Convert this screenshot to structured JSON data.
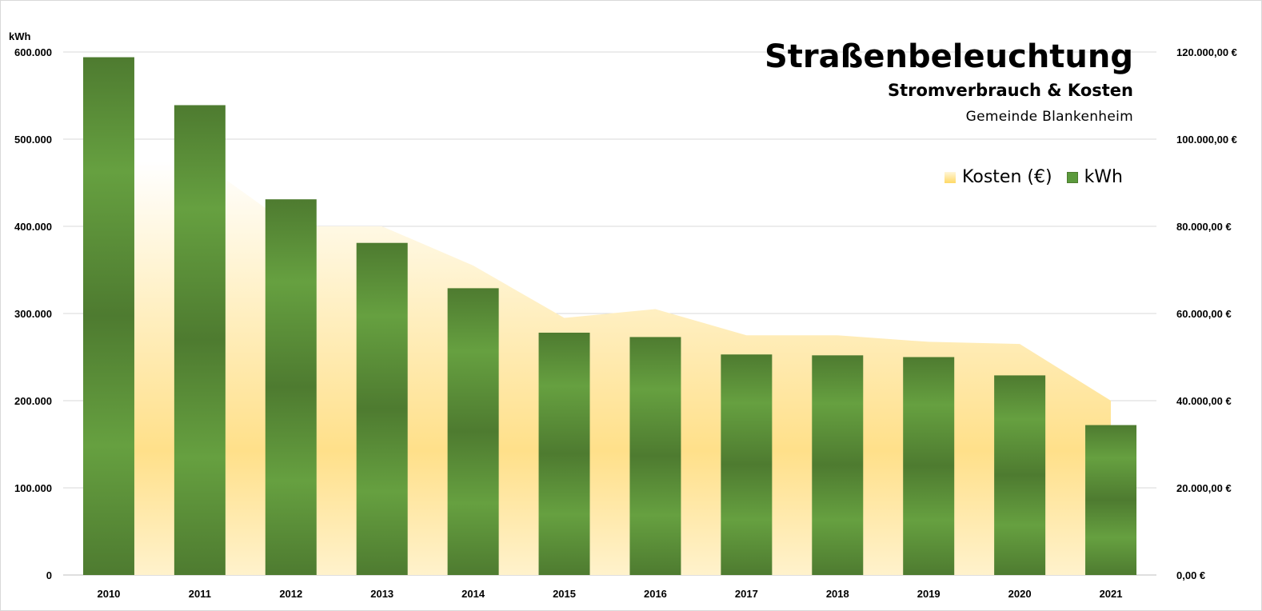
{
  "chart_data": {
    "type": "bar",
    "title": "Straßenbeleuchtung",
    "subtitle": "Stromverbrauch & Kosten",
    "source": "Gemeinde Blankenheim",
    "categories": [
      "2010",
      "2011",
      "2012",
      "2013",
      "2014",
      "2015",
      "2016",
      "2017",
      "2018",
      "2019",
      "2020",
      "2021"
    ],
    "series": [
      {
        "name": "kWh",
        "type": "bar",
        "axis": "left",
        "color": "#5b9a3c",
        "values": [
          594000,
          539000,
          431000,
          381000,
          329000,
          278000,
          273000,
          253000,
          252000,
          250000,
          229000,
          172000
        ]
      },
      {
        "name": "Kosten (€)",
        "type": "area",
        "axis": "right",
        "color": "#ffe699",
        "values": [
          95000,
          95000,
          80000,
          80000,
          71000,
          59000,
          61000,
          55000,
          55000,
          53500,
          53000,
          40000
        ]
      }
    ],
    "y_left": {
      "unit": "kWh",
      "min": 0,
      "max": 600000,
      "ticks": [
        "0",
        "100.000",
        "200.000",
        "300.000",
        "400.000",
        "500.000",
        "600.000"
      ]
    },
    "y_right": {
      "min": 0,
      "max": 120000,
      "ticks": [
        "0,00 €",
        "20.000,00 €",
        "40.000,00 €",
        "60.000,00 €",
        "80.000,00 €",
        "100.000,00 €",
        "120.000,00 €"
      ]
    },
    "grid": true,
    "legend_position": "top-right"
  }
}
